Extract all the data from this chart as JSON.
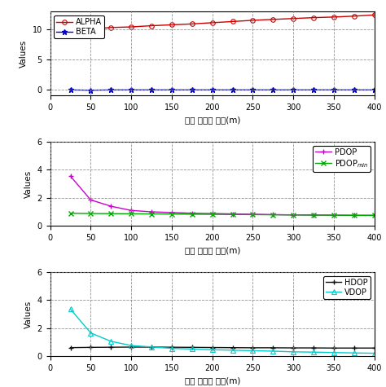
{
  "x": [
    25,
    50,
    75,
    100,
    125,
    150,
    175,
    200,
    225,
    250,
    275,
    300,
    325,
    350,
    375,
    400
  ],
  "alpha": [
    10.05,
    10.1,
    10.35,
    10.45,
    10.65,
    10.8,
    10.95,
    11.15,
    11.35,
    11.55,
    11.7,
    11.85,
    12.0,
    12.1,
    12.25,
    12.45
  ],
  "beta": [
    -0.05,
    -0.1,
    -0.05,
    -0.05,
    -0.05,
    -0.05,
    -0.05,
    -0.05,
    -0.05,
    -0.05,
    -0.05,
    -0.05,
    -0.05,
    -0.05,
    -0.05,
    -0.05
  ],
  "pdop": [
    3.55,
    1.85,
    1.4,
    1.1,
    1.0,
    0.95,
    0.9,
    0.88,
    0.85,
    0.83,
    0.8,
    0.78,
    0.77,
    0.76,
    0.75,
    0.75
  ],
  "pdop_min": [
    0.9,
    0.88,
    0.87,
    0.86,
    0.85,
    0.84,
    0.83,
    0.82,
    0.81,
    0.8,
    0.79,
    0.78,
    0.77,
    0.76,
    0.75,
    0.74
  ],
  "hdop": [
    0.6,
    0.62,
    0.63,
    0.64,
    0.64,
    0.63,
    0.62,
    0.61,
    0.6,
    0.59,
    0.59,
    0.58,
    0.58,
    0.57,
    0.57,
    0.57
  ],
  "vdop": [
    3.35,
    1.65,
    1.05,
    0.75,
    0.65,
    0.55,
    0.5,
    0.45,
    0.42,
    0.38,
    0.35,
    0.3,
    0.28,
    0.25,
    0.22,
    0.2
  ],
  "alpha_color": "#cc0000",
  "beta_color": "#0000cc",
  "pdop_color": "#cc00cc",
  "pdop_min_color": "#00aa00",
  "hdop_color": "#111111",
  "vdop_color": "#00cccc",
  "xlabel": "기준 리더의 높이(m)",
  "ylabel": "Values",
  "subplot1_ylim": [
    -1,
    13
  ],
  "subplot1_yticks": [
    0,
    5,
    10
  ],
  "subplot2_ylim": [
    0,
    6
  ],
  "subplot2_yticks": [
    0,
    2,
    4,
    6
  ],
  "subplot3_ylim": [
    0,
    6
  ],
  "subplot3_yticks": [
    0,
    2,
    4,
    6
  ],
  "xlim": [
    0,
    400
  ],
  "xticks": [
    0,
    50,
    100,
    150,
    200,
    250,
    300,
    350,
    400
  ],
  "background_color": "#ffffff"
}
